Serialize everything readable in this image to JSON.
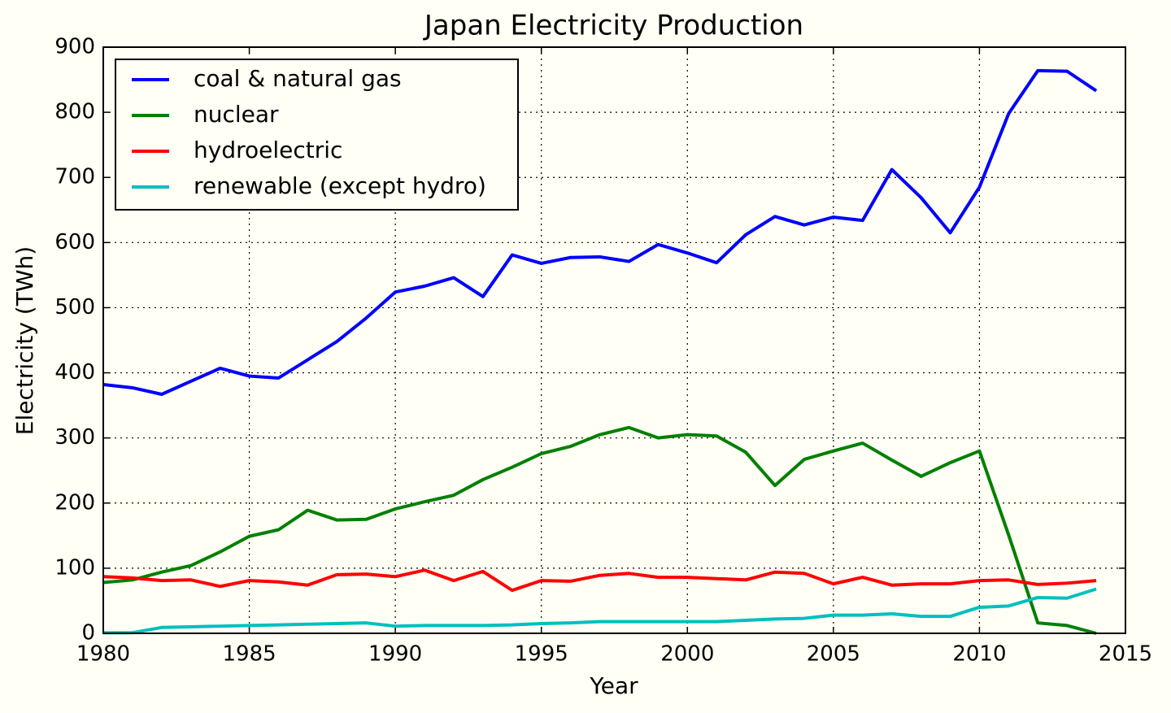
{
  "chart_data": {
    "type": "line",
    "title": "Japan Electricity Production",
    "x_label": "Year",
    "y_label": "Electricity (TWh)",
    "x": [
      1980,
      1981,
      1982,
      1983,
      1984,
      1985,
      1986,
      1987,
      1988,
      1989,
      1990,
      1991,
      1992,
      1993,
      1994,
      1995,
      1996,
      1997,
      1998,
      1999,
      2000,
      2001,
      2002,
      2003,
      2004,
      2005,
      2006,
      2007,
      2008,
      2009,
      2010,
      2011,
      2012,
      2013,
      2014
    ],
    "series": [
      {
        "name": "coal & natural gas",
        "color": "#0000ff",
        "values": [
          382,
          377,
          367,
          387,
          407,
          395,
          392,
          420,
          448,
          484,
          524,
          533,
          546,
          517,
          581,
          568,
          577,
          578,
          571,
          597,
          584,
          569,
          612,
          640,
          627,
          639,
          634,
          712,
          669,
          615,
          685,
          798,
          864,
          863,
          833
        ]
      },
      {
        "name": "nuclear",
        "color": "#008000",
        "values": [
          78,
          82,
          94,
          104,
          125,
          149,
          159,
          189,
          174,
          175,
          191,
          202,
          212,
          236,
          255,
          276,
          287,
          305,
          316,
          300,
          305,
          303,
          278,
          227,
          267,
          280,
          292,
          266,
          241,
          262,
          280,
          151,
          16,
          12,
          0
        ]
      },
      {
        "name": "hydroelectric",
        "color": "#ff0000",
        "values": [
          87,
          85,
          81,
          82,
          72,
          81,
          79,
          74,
          90,
          91,
          87,
          97,
          81,
          95,
          66,
          81,
          80,
          89,
          92,
          86,
          86,
          84,
          82,
          94,
          92,
          76,
          86,
          74,
          76,
          76,
          81,
          82,
          75,
          77,
          81
        ]
      },
      {
        "name": "renewable (except hydro)",
        "color": "#00bfbf",
        "values": [
          1,
          1,
          9,
          10,
          11,
          12,
          13,
          14,
          15,
          16,
          11,
          12,
          12,
          12,
          13,
          15,
          16,
          18,
          18,
          18,
          18,
          18,
          20,
          22,
          23,
          28,
          28,
          30,
          26,
          26,
          40,
          42,
          55,
          54,
          68
        ]
      }
    ],
    "xlim": [
      1980,
      2015
    ],
    "xticks": [
      1980,
      1985,
      1990,
      1995,
      2000,
      2005,
      2010,
      2015
    ],
    "ylim": [
      0,
      900
    ],
    "yticks": [
      0,
      100,
      200,
      300,
      400,
      500,
      600,
      700,
      800,
      900
    ],
    "grid": true,
    "legend": "upper-left"
  }
}
